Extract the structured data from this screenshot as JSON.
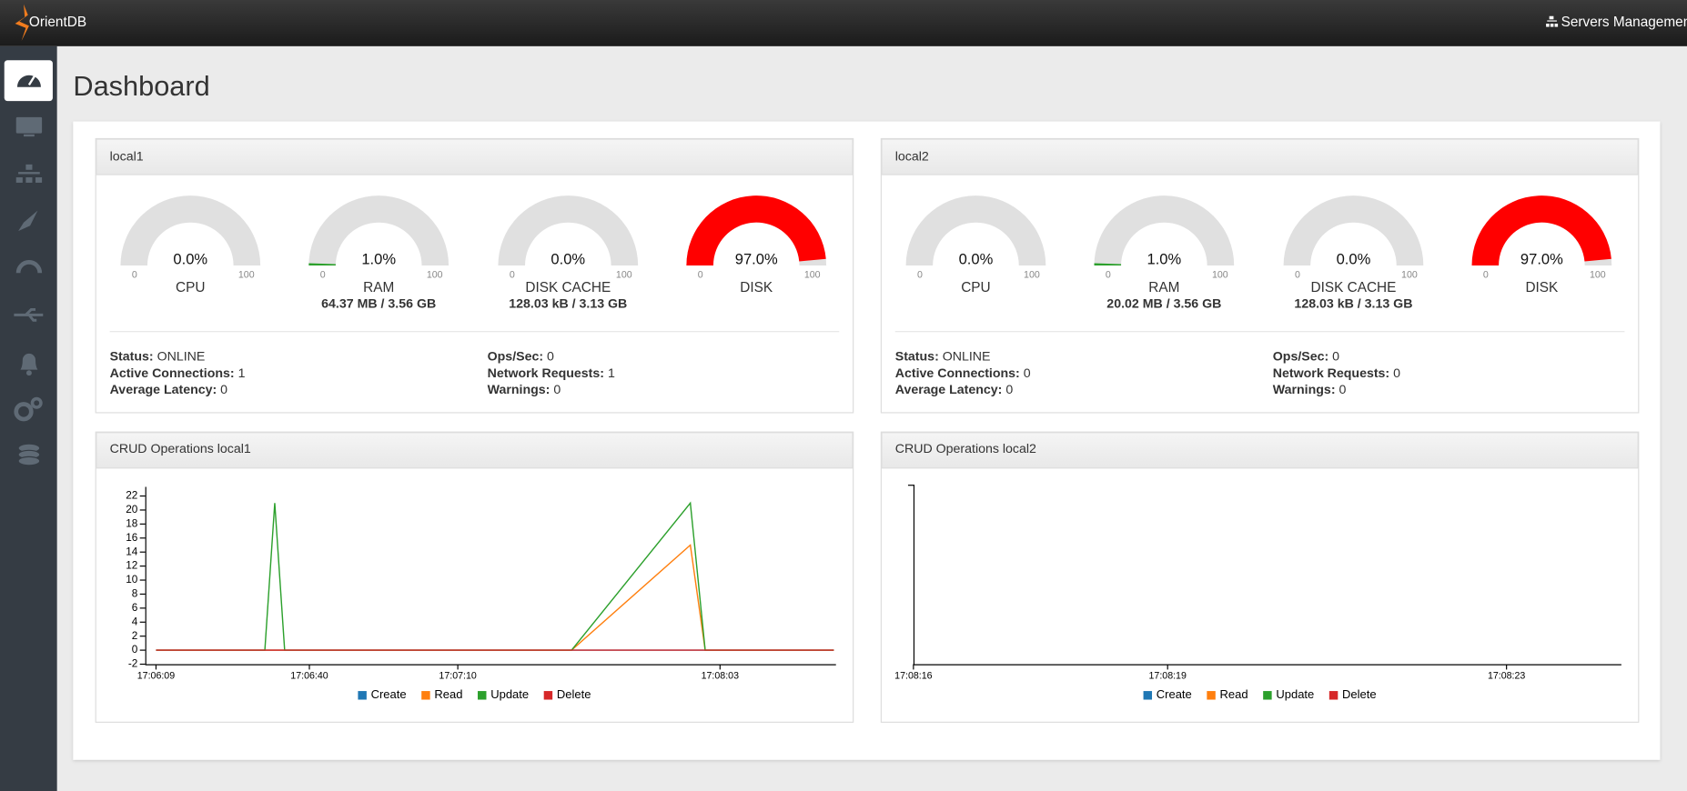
{
  "header": {
    "brand": "OrientDB",
    "servers_link": "Servers Management"
  },
  "page_title": "Dashboard",
  "servers": [
    {
      "name": "local1",
      "gauges": [
        {
          "label": "CPU",
          "value": 0,
          "value_label": "0.0%",
          "min": 0,
          "max": 100,
          "color": "#2ca02c"
        },
        {
          "label": "RAM",
          "value": 1,
          "value_label": "1.0%",
          "min": 0,
          "max": 100,
          "color": "#2ca02c",
          "detail": "64.37 MB / 3.56 GB"
        },
        {
          "label": "DISK CACHE",
          "value": 0,
          "value_label": "0.0%",
          "min": 0,
          "max": 100,
          "color": "#2ca02c",
          "detail": "128.03 kB / 3.13 GB"
        },
        {
          "label": "DISK",
          "value": 97,
          "value_label": "97.0%",
          "min": 0,
          "max": 100,
          "color": "#ff0000"
        }
      ],
      "stats": [
        {
          "label": "Status:",
          "value": "ONLINE"
        },
        {
          "label": "Active Connections:",
          "value": 1
        },
        {
          "label": "Average Latency:",
          "value": 0
        },
        {
          "label": "Ops/Sec:",
          "value": 0
        },
        {
          "label": "Network Requests:",
          "value": 1
        },
        {
          "label": "Warnings:",
          "value": 0
        }
      ],
      "chart_data": {
        "type": "line",
        "title": "CRUD Operations local1",
        "x": [
          "17:06:09",
          "17:06:31",
          "17:06:33",
          "17:06:35",
          "17:07:33",
          "17:07:57",
          "17:08:00",
          "17:08:26"
        ],
        "series": [
          {
            "name": "Create",
            "color": "#1f77b4",
            "values": [
              0,
              0,
              0,
              0,
              0,
              0,
              0,
              0
            ]
          },
          {
            "name": "Read",
            "color": "#ff7f0e",
            "values": [
              0,
              0,
              0,
              0,
              0,
              15,
              0,
              0
            ]
          },
          {
            "name": "Update",
            "color": "#2ca02c",
            "values": [
              0,
              0,
              21,
              0,
              0,
              21,
              0,
              0
            ]
          },
          {
            "name": "Delete",
            "color": "#d62728",
            "values": [
              0,
              0,
              0,
              0,
              0,
              0,
              0,
              0
            ]
          }
        ],
        "xlim": [
          "17:06:09",
          "17:08:26"
        ],
        "xticks": [
          "17:06:09",
          "17:06:40",
          "17:07:10",
          "17:08:03"
        ],
        "ylim": [
          -2,
          23
        ],
        "yticks": [
          -2,
          0,
          2,
          4,
          6,
          8,
          10,
          12,
          14,
          16,
          18,
          20,
          22
        ]
      }
    },
    {
      "name": "local2",
      "gauges": [
        {
          "label": "CPU",
          "value": 0,
          "value_label": "0.0%",
          "min": 0,
          "max": 100,
          "color": "#2ca02c"
        },
        {
          "label": "RAM",
          "value": 1,
          "value_label": "1.0%",
          "min": 0,
          "max": 100,
          "color": "#2ca02c",
          "detail": "20.02 MB / 3.56 GB"
        },
        {
          "label": "DISK CACHE",
          "value": 0,
          "value_label": "0.0%",
          "min": 0,
          "max": 100,
          "color": "#2ca02c",
          "detail": "128.03 kB / 3.13 GB"
        },
        {
          "label": "DISK",
          "value": 97,
          "value_label": "97.0%",
          "min": 0,
          "max": 100,
          "color": "#ff0000"
        }
      ],
      "stats": [
        {
          "label": "Status:",
          "value": "ONLINE"
        },
        {
          "label": "Active Connections:",
          "value": 0
        },
        {
          "label": "Average Latency:",
          "value": 0
        },
        {
          "label": "Ops/Sec:",
          "value": 0
        },
        {
          "label": "Network Requests:",
          "value": 0
        },
        {
          "label": "Warnings:",
          "value": 0
        }
      ],
      "chart_data": {
        "type": "line",
        "title": "CRUD Operations local2",
        "x": [],
        "series": [
          {
            "name": "Create",
            "color": "#1f77b4",
            "values": []
          },
          {
            "name": "Read",
            "color": "#ff7f0e",
            "values": []
          },
          {
            "name": "Update",
            "color": "#2ca02c",
            "values": []
          },
          {
            "name": "Delete",
            "color": "#d62728",
            "values": []
          }
        ],
        "xlim": [
          "17:08:16",
          "17:08:24"
        ],
        "xticks": [
          "17:08:16",
          "17:08:19",
          "17:08:23"
        ]
      }
    }
  ]
}
